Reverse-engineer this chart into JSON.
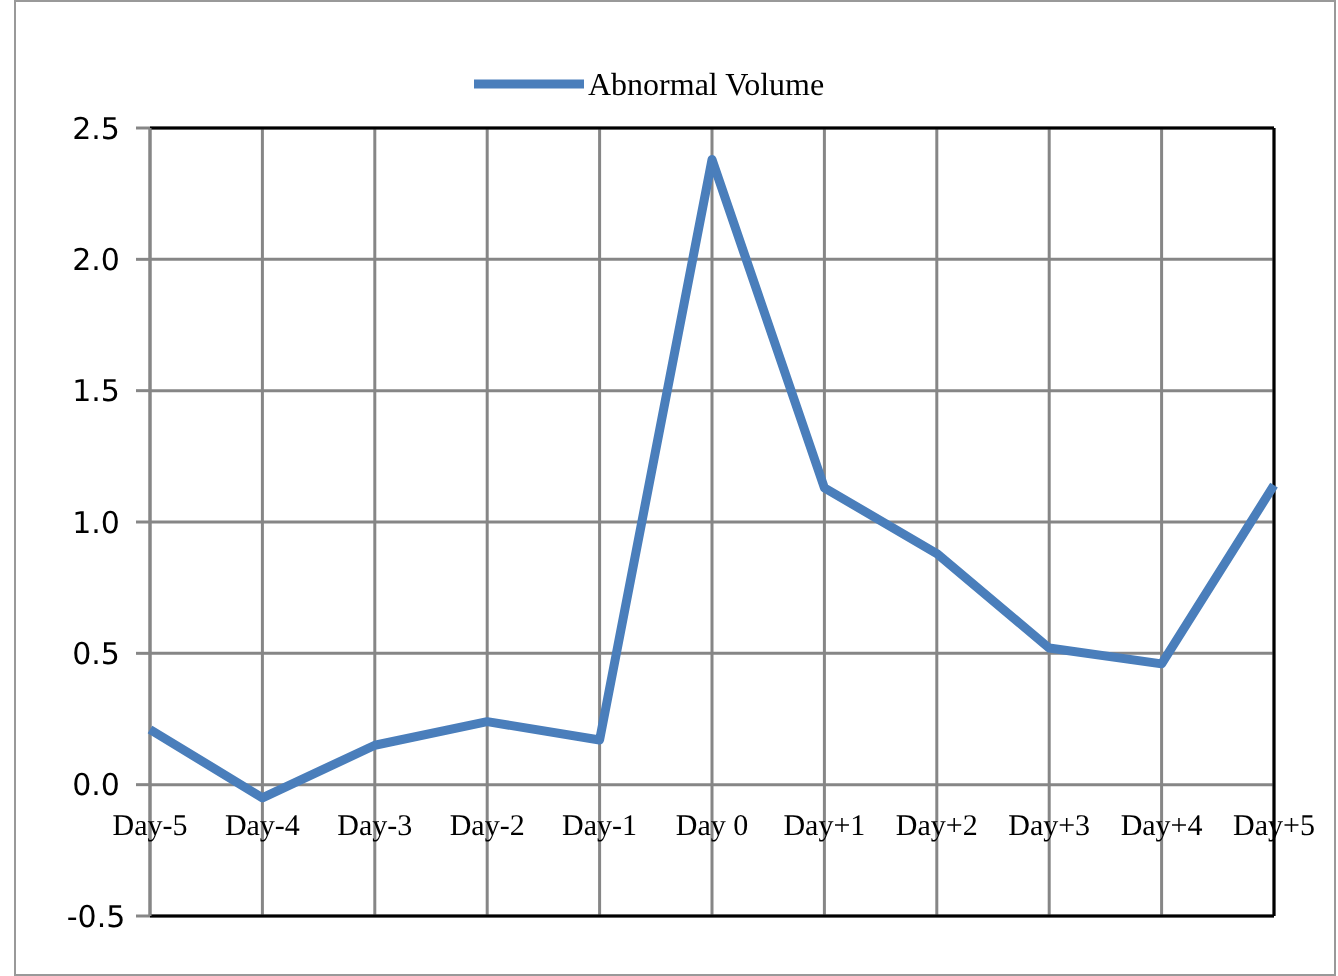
{
  "chart_data": {
    "type": "line",
    "categories": [
      "Day-5",
      "Day-4",
      "Day-3",
      "Day-2",
      "Day-1",
      "Day 0",
      "Day+1",
      "Day+2",
      "Day+3",
      "Day+4",
      "Day+5"
    ],
    "series": [
      {
        "name": "Abnormal Volume",
        "color": "#4a7ebb",
        "values": [
          0.21,
          -0.05,
          0.15,
          0.24,
          0.17,
          2.38,
          1.13,
          0.88,
          0.52,
          0.46,
          1.14
        ]
      }
    ],
    "ylim": [
      -0.5,
      2.5
    ],
    "yticks": [
      {
        "value": -0.5,
        "label": "-0.5"
      },
      {
        "value": 0,
        "label": "0.0"
      },
      {
        "value": 0.5,
        "label": "0.5"
      },
      {
        "value": 1,
        "label": "1.0"
      },
      {
        "value": 1.5,
        "label": "1.5"
      },
      {
        "value": 2,
        "label": "2.0"
      },
      {
        "value": 2.5,
        "label": "2.5"
      }
    ],
    "grid": true,
    "legend": "top",
    "marker": "none",
    "line_style": "solid"
  }
}
